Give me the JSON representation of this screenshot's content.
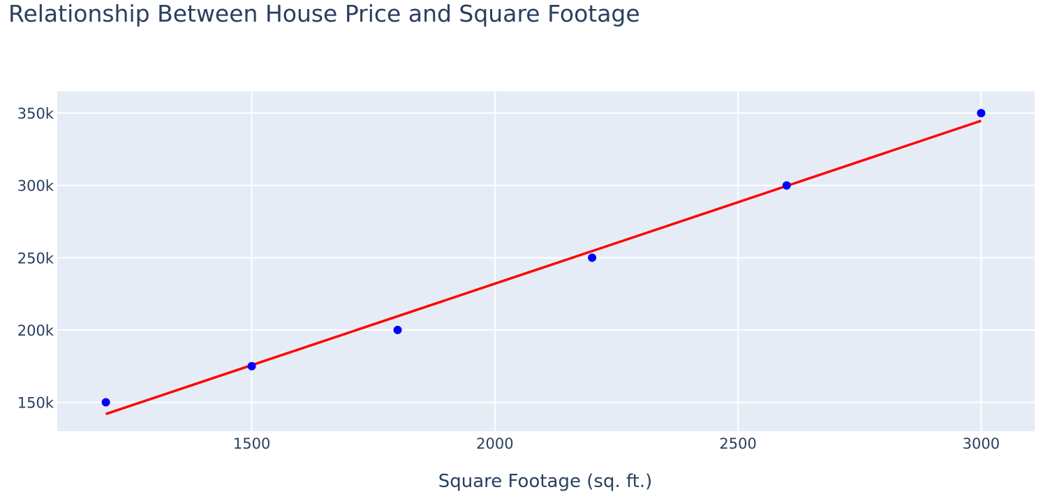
{
  "chart_data": {
    "type": "scatter",
    "title": "Relationship Between House Price and Square Footage",
    "xlabel": "Square Footage (sq. ft.)",
    "ylabel": "",
    "xlim": [
      1100,
      3110
    ],
    "ylim": [
      130000,
      365000
    ],
    "x_ticks": [
      1500,
      2000,
      2500,
      3000
    ],
    "x_tick_labels": [
      "1500",
      "2000",
      "2500",
      "3000"
    ],
    "y_ticks": [
      150000,
      200000,
      250000,
      300000,
      350000
    ],
    "y_tick_labels": [
      "150k",
      "200k",
      "250k",
      "300k",
      "350k"
    ],
    "grid": true,
    "legend": "none",
    "points": {
      "x": [
        1200,
        1500,
        1800,
        2200,
        2600,
        3000
      ],
      "y": [
        150000,
        175000,
        200000,
        250000,
        300000,
        350000
      ],
      "color": "#0000ff"
    },
    "trendline": {
      "x": [
        1200,
        3000
      ],
      "y": [
        141900,
        344700
      ],
      "color": "#ff0000"
    },
    "plot_background": "#e5ecf6",
    "grid_color": "#ffffff"
  }
}
